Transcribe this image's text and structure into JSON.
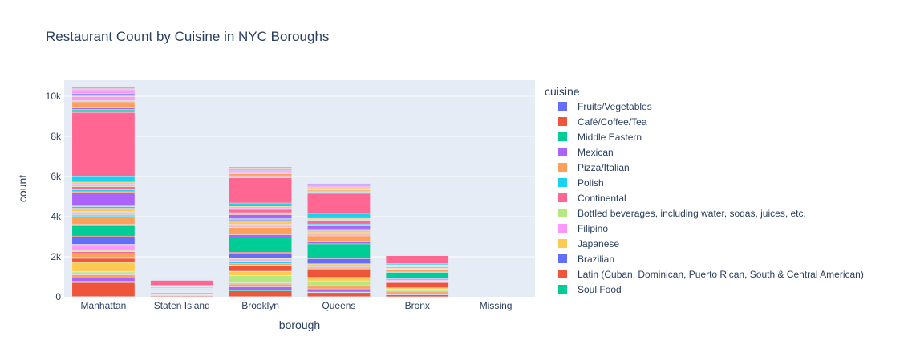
{
  "chart_data": {
    "type": "bar",
    "stacked": true,
    "title": "Restaurant Count by Cuisine in NYC Boroughs",
    "xlabel": "borough",
    "ylabel": "count",
    "categories": [
      "Manhattan",
      "Staten Island",
      "Brooklyn",
      "Queens",
      "Bronx",
      "Missing"
    ],
    "ylim": [
      0,
      10800
    ],
    "yticks": [
      0,
      2000,
      4000,
      6000,
      8000,
      10000
    ],
    "ytick_labels": [
      "0",
      "2k",
      "4k",
      "6k",
      "8k",
      "10k"
    ],
    "grid": true,
    "legend_title": "cuisine",
    "legend_position": "right",
    "plot_bg": "#e5ecf6",
    "series": [
      {
        "name": "Fruits/Vegetables",
        "color": "#636efa",
        "values": [
          12,
          2,
          10,
          8,
          4,
          0
        ]
      },
      {
        "name": "Café/Coffee/Tea",
        "color": "#EF553B",
        "values": [
          700,
          40,
          280,
          200,
          90,
          0
        ]
      },
      {
        "name": "Middle Eastern",
        "color": "#00cc96",
        "values": [
          60,
          5,
          40,
          30,
          10,
          0
        ]
      },
      {
        "name": "Mexican",
        "color": "#ab63fa",
        "values": [
          180,
          15,
          170,
          160,
          90,
          0
        ]
      },
      {
        "name": "Pizza/Italian",
        "color": "#FFA15A",
        "values": [
          150,
          30,
          140,
          130,
          80,
          0
        ]
      },
      {
        "name": "Polish",
        "color": "#19d3f3",
        "values": [
          10,
          2,
          40,
          15,
          2,
          0
        ]
      },
      {
        "name": "Continental",
        "color": "#FF6692",
        "values": [
          40,
          5,
          20,
          15,
          5,
          0
        ]
      },
      {
        "name": "Bottled beverages, including water, sodas, juices, etc.",
        "color": "#B6E880",
        "values": [
          90,
          10,
          350,
          200,
          100,
          0
        ]
      },
      {
        "name": "Filipino",
        "color": "#FF97FF",
        "values": [
          30,
          5,
          10,
          40,
          5,
          0
        ]
      },
      {
        "name": "Japanese",
        "color": "#FECB52",
        "values": [
          450,
          40,
          200,
          150,
          60,
          0
        ]
      },
      {
        "name": "Brazilian",
        "color": "#636efa",
        "values": [
          30,
          3,
          20,
          25,
          3,
          0
        ]
      },
      {
        "name": "Latin (Cuban, Dominican, Puerto Rican, South & Central American)",
        "color": "#EF553B",
        "values": [
          170,
          40,
          260,
          360,
          260,
          0
        ]
      },
      {
        "name": "Soul Food",
        "color": "#00cc96",
        "values": [
          20,
          5,
          30,
          10,
          20,
          0
        ]
      },
      {
        "name": "",
        "color": "#ab63fa",
        "values": [
          40,
          5,
          20,
          10,
          5,
          0
        ]
      },
      {
        "name": "",
        "color": "#FFA15A",
        "values": [
          150,
          20,
          80,
          80,
          30,
          0
        ]
      },
      {
        "name": "",
        "color": "#19d3f3",
        "values": [
          30,
          5,
          60,
          40,
          10,
          0
        ]
      },
      {
        "name": "",
        "color": "#FF6692",
        "values": [
          90,
          10,
          40,
          30,
          10,
          0
        ]
      },
      {
        "name": "",
        "color": "#B6E880",
        "values": [
          60,
          10,
          30,
          40,
          20,
          0
        ]
      },
      {
        "name": "",
        "color": "#FF97FF",
        "values": [
          250,
          20,
          80,
          60,
          40,
          0
        ]
      },
      {
        "name": "",
        "color": "#FECB52",
        "values": [
          60,
          10,
          40,
          50,
          10,
          0
        ]
      },
      {
        "name": "",
        "color": "#636efa",
        "values": [
          350,
          20,
          250,
          250,
          50,
          0
        ]
      },
      {
        "name": "",
        "color": "#EF553B",
        "values": [
          60,
          10,
          60,
          40,
          20,
          0
        ]
      },
      {
        "name": "",
        "color": "#00cc96",
        "values": [
          500,
          50,
          750,
          700,
          300,
          0
        ]
      },
      {
        "name": "",
        "color": "#ab63fa",
        "values": [
          80,
          5,
          120,
          100,
          20,
          0
        ]
      },
      {
        "name": "",
        "color": "#FFA15A",
        "values": [
          400,
          30,
          350,
          300,
          100,
          0
        ]
      },
      {
        "name": "",
        "color": "#19d3f3",
        "values": [
          40,
          5,
          30,
          40,
          10,
          0
        ]
      },
      {
        "name": "",
        "color": "#FF6692",
        "values": [
          50,
          5,
          40,
          40,
          10,
          0
        ]
      },
      {
        "name": "",
        "color": "#B6E880",
        "values": [
          120,
          10,
          60,
          50,
          20,
          0
        ]
      },
      {
        "name": "",
        "color": "#FF97FF",
        "values": [
          40,
          10,
          40,
          30,
          10,
          0
        ]
      },
      {
        "name": "",
        "color": "#FECB52",
        "values": [
          160,
          15,
          150,
          100,
          30,
          0
        ]
      },
      {
        "name": "",
        "color": "#636efa",
        "values": [
          60,
          5,
          60,
          50,
          10,
          0
        ]
      },
      {
        "name": "",
        "color": "#EF553B",
        "values": [
          20,
          5,
          30,
          20,
          10,
          0
        ]
      },
      {
        "name": "",
        "color": "#00cc96",
        "values": [
          30,
          5,
          40,
          20,
          10,
          0
        ]
      },
      {
        "name": "",
        "color": "#ab63fa",
        "values": [
          650,
          30,
          200,
          150,
          40,
          0
        ]
      },
      {
        "name": "",
        "color": "#FFA15A",
        "values": [
          60,
          10,
          40,
          40,
          20,
          0
        ]
      },
      {
        "name": "",
        "color": "#19d3f3",
        "values": [
          100,
          10,
          60,
          50,
          10,
          0
        ]
      },
      {
        "name": "",
        "color": "#FF6692",
        "values": [
          150,
          10,
          160,
          150,
          30,
          0
        ]
      },
      {
        "name": "",
        "color": "#B6E880",
        "values": [
          100,
          10,
          30,
          40,
          20,
          0
        ]
      },
      {
        "name": "",
        "color": "#FF97FF",
        "values": [
          40,
          5,
          40,
          30,
          10,
          0
        ]
      },
      {
        "name": "",
        "color": "#FECB52",
        "values": [
          90,
          10,
          80,
          60,
          20,
          0
        ]
      },
      {
        "name": "",
        "color": "#19d3f3",
        "values": [
          270,
          30,
          170,
          250,
          50,
          0
        ]
      },
      {
        "name": "",
        "color": "#FF6692",
        "values": [
          3200,
          250,
          1250,
          1000,
          400,
          0
        ]
      },
      {
        "name": "",
        "color": "#636efa",
        "values": [
          40,
          5,
          30,
          20,
          10,
          0
        ]
      },
      {
        "name": "",
        "color": "#EF553B",
        "values": [
          50,
          5,
          30,
          20,
          5,
          0
        ]
      },
      {
        "name": "",
        "color": "#00cc96",
        "values": [
          60,
          5,
          40,
          30,
          10,
          0
        ]
      },
      {
        "name": "",
        "color": "#ab63fa",
        "values": [
          80,
          10,
          40,
          30,
          10,
          0
        ]
      },
      {
        "name": "",
        "color": "#FFA15A",
        "values": [
          300,
          15,
          70,
          60,
          20,
          0
        ]
      },
      {
        "name": "",
        "color": "#B6E880",
        "values": [
          60,
          5,
          30,
          20,
          10,
          0
        ]
      },
      {
        "name": "",
        "color": "#FF97FF",
        "values": [
          200,
          10,
          50,
          60,
          20,
          0
        ]
      },
      {
        "name": "",
        "color": "#FECB52",
        "values": [
          80,
          5,
          40,
          50,
          10,
          0
        ]
      },
      {
        "name": "",
        "color": "#636efa",
        "values": [
          60,
          5,
          40,
          30,
          10,
          0
        ]
      },
      {
        "name": "",
        "color": "#FF97FF",
        "values": [
          200,
          10,
          80,
          100,
          20,
          0
        ]
      },
      {
        "name": "",
        "color": "#FECB52",
        "values": [
          60,
          5,
          40,
          30,
          10,
          0
        ]
      },
      {
        "name": "",
        "color": "#ab63fa",
        "values": [
          50,
          5,
          50,
          40,
          10,
          0
        ]
      }
    ]
  }
}
